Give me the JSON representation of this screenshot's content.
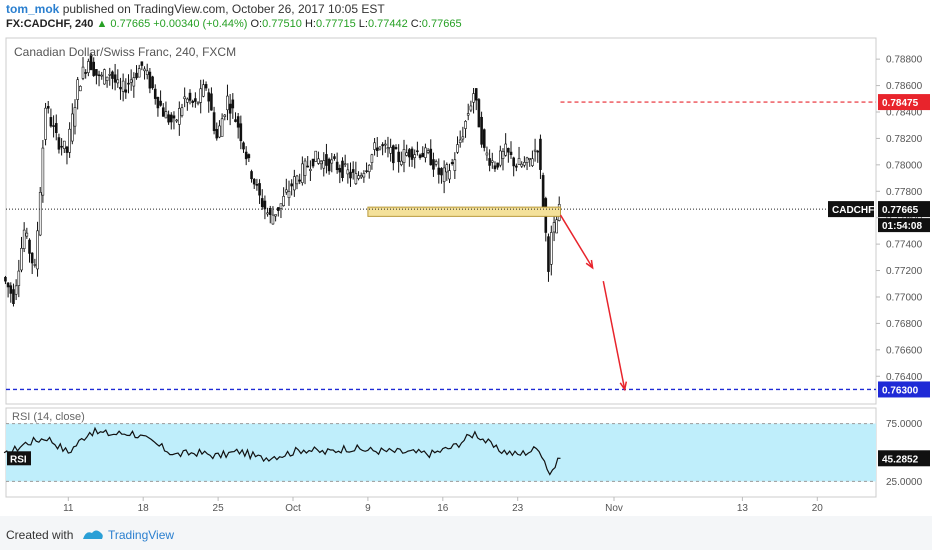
{
  "header": {
    "author": "tom_mok",
    "published_text": "published on TradingView.com, October 26, 2017 10:05 EST",
    "symbol_line": "FX:CADCHF, 240",
    "arrow": "▲",
    "last": "0.77665",
    "change": "+0.00340 (+0.44%)",
    "open_label": "O:",
    "open": "0.77510",
    "high_label": "H:",
    "high": "0.77715",
    "low_label": "L:",
    "low": "0.77442",
    "close_label": "C:",
    "close": "0.77665"
  },
  "footer": {
    "created_with": "Created with",
    "brand": "TradingView"
  },
  "colors": {
    "resistance": "#e8242c",
    "support": "#1f2ad6",
    "rsi_band": "#bfeefb",
    "zone": "#f4e19a"
  },
  "chart_data": [
    {
      "type": "candlestick",
      "title": "Canadian Dollar/Swiss Franc, 240, FXCM",
      "x_ticks": [
        "11",
        "18",
        "25",
        "Oct",
        "9",
        "16",
        "23",
        "Nov",
        "13",
        "20"
      ],
      "y_ticks": [
        "0.78800",
        "0.78600",
        "0.78400",
        "0.78200",
        "0.78000",
        "0.77800",
        "0.77600",
        "0.77400",
        "0.77200",
        "0.77000",
        "0.76800",
        "0.76600",
        "0.76400"
      ],
      "ylim": [
        0.7619,
        0.7896
      ],
      "price_path": [
        [
          "Sep 5",
          0.7715
        ],
        [
          "Sep 6",
          0.77
        ],
        [
          "Sep 7",
          0.775
        ],
        [
          "Sep 8",
          0.772
        ],
        [
          "Sep 9",
          0.7845
        ],
        [
          "Sep 10",
          0.782
        ],
        [
          "Sep 11",
          0.781
        ],
        [
          "Sep 12",
          0.786
        ],
        [
          "Sep 13",
          0.788
        ],
        [
          "Sep 14",
          0.7865
        ],
        [
          "Sep 15",
          0.787
        ],
        [
          "Sep 16",
          0.7855
        ],
        [
          "Sep 18",
          0.7875
        ],
        [
          "Sep 20",
          0.784
        ],
        [
          "Sep 21",
          0.783
        ],
        [
          "Sep 22",
          0.785
        ],
        [
          "Sep 23",
          0.7845
        ],
        [
          "Sep 24",
          0.786
        ],
        [
          "Sep 25",
          0.782
        ],
        [
          "Sep 26",
          0.785
        ],
        [
          "Sep 27",
          0.783
        ],
        [
          "Sep 28",
          0.78
        ],
        [
          "Sep 29",
          0.7775
        ],
        [
          "Sep 30",
          0.776
        ],
        [
          "Oct 1",
          0.777
        ],
        [
          "Oct 2",
          0.7785
        ],
        [
          "Oct 4",
          0.7805
        ],
        [
          "Oct 6",
          0.78
        ],
        [
          "Oct 8",
          0.779
        ],
        [
          "Oct 9",
          0.78
        ],
        [
          "Oct 10",
          0.7815
        ],
        [
          "Oct 12",
          0.7805
        ],
        [
          "Oct 13",
          0.781
        ],
        [
          "Oct 14",
          0.781
        ],
        [
          "Oct 15",
          0.7805
        ],
        [
          "Oct 16",
          0.779
        ],
        [
          "Oct 17",
          0.78
        ],
        [
          "Oct 18",
          0.7825
        ],
        [
          "Oct 19",
          0.7855
        ],
        [
          "Oct 20",
          0.781
        ],
        [
          "Oct 21",
          0.78
        ],
        [
          "Oct 22",
          0.781
        ],
        [
          "Oct 23",
          0.78
        ],
        [
          "Oct 24",
          0.78
        ],
        [
          "Oct 25",
          0.7815
        ],
        [
          "Oct 26",
          0.7725
        ],
        [
          "Oct 26 b",
          0.7745
        ],
        [
          "Oct 27",
          0.7765
        ]
      ],
      "price_labels": [
        {
          "name": "resistance",
          "value": 0.78475,
          "label": "0.78475"
        },
        {
          "name": "current",
          "value": 0.77665,
          "label": "0.77665",
          "symbol": "CADCHF",
          "countdown": "01:54:08"
        },
        {
          "name": "target",
          "value": 0.763,
          "label": "0.76300"
        }
      ],
      "support_zone": {
        "low": 0.7761,
        "high": 0.7768,
        "from": "Oct 9",
        "to": "Oct 27"
      },
      "projection": [
        [
          "Oct 27",
          0.7762
        ],
        [
          "Oct 30",
          0.7722
        ],
        [
          "Oct 31",
          0.7712
        ],
        [
          "Nov 2",
          0.763
        ]
      ]
    },
    {
      "type": "line",
      "title": "RSI (14, close)",
      "series_label": "RSI",
      "last_value": "45.2852",
      "y_ticks": [
        "75.0000",
        "25.0000"
      ],
      "ylim": [
        15,
        85
      ],
      "band": [
        25,
        75
      ],
      "path": [
        [
          "Sep 5",
          47
        ],
        [
          "Sep 7",
          58
        ],
        [
          "Sep 9",
          63
        ],
        [
          "Sep 11",
          50
        ],
        [
          "Sep 13",
          68
        ],
        [
          "Sep 15",
          66
        ],
        [
          "Sep 17",
          67
        ],
        [
          "Sep 19",
          58
        ],
        [
          "Sep 21",
          48
        ],
        [
          "Sep 23",
          50
        ],
        [
          "Sep 25",
          47
        ],
        [
          "Sep 27",
          51
        ],
        [
          "Sep 29",
          45
        ],
        [
          "Oct 1",
          48
        ],
        [
          "Oct 3",
          53
        ],
        [
          "Oct 5",
          50
        ],
        [
          "Oct 7",
          54
        ],
        [
          "Oct 9",
          52
        ],
        [
          "Oct 11",
          51
        ],
        [
          "Oct 13",
          50
        ],
        [
          "Oct 15",
          49
        ],
        [
          "Oct 17",
          55
        ],
        [
          "Oct 19",
          67
        ],
        [
          "Oct 21",
          53
        ],
        [
          "Oct 23",
          48
        ],
        [
          "Oct 25",
          54
        ],
        [
          "Oct 26",
          32
        ],
        [
          "Oct 27",
          45
        ]
      ]
    }
  ]
}
